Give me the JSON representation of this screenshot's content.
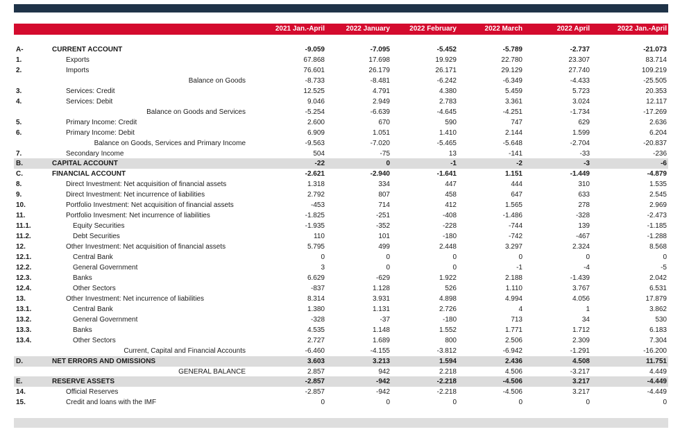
{
  "columns": [
    "2021 Jan.-April",
    "2022 January",
    "2022 February",
    "2022 March",
    "2022 April",
    "2022 Jan.-April"
  ],
  "rows": [
    {
      "code": "A-",
      "label": "CURRENT ACCOUNT",
      "values": [
        "-9.059",
        "-7.095",
        "-5.452",
        "-5.789",
        "-2.737",
        "-21.073"
      ],
      "style": "bold"
    },
    {
      "code": "1.",
      "label": "Exports",
      "values": [
        "67.868",
        "17.698",
        "19.929",
        "22.780",
        "23.307",
        "83.714"
      ],
      "style": "lv1"
    },
    {
      "code": "2.",
      "label": "Imports",
      "values": [
        "76.601",
        "26.179",
        "26.171",
        "29.129",
        "27.740",
        "109.219"
      ],
      "style": "lv1"
    },
    {
      "code": "",
      "label": "Balance on Goods",
      "values": [
        "-8.733",
        "-8.481",
        "-6.242",
        "-6.349",
        "-4.433",
        "-25.505"
      ],
      "style": "rt"
    },
    {
      "code": "3.",
      "label": "Services: Credit",
      "values": [
        "12.525",
        "4.791",
        "4.380",
        "5.459",
        "5.723",
        "20.353"
      ],
      "style": "lv1"
    },
    {
      "code": "4.",
      "label": "Services: Debit",
      "values": [
        "9.046",
        "2.949",
        "2.783",
        "3.361",
        "3.024",
        "12.117"
      ],
      "style": "lv1"
    },
    {
      "code": "",
      "label": "Balance on Goods and Services",
      "values": [
        "-5.254",
        "-6.639",
        "-4.645",
        "-4.251",
        "-1.734",
        "-17.269"
      ],
      "style": "rt"
    },
    {
      "code": "5.",
      "label": "Primary Income: Credit",
      "values": [
        "2.600",
        "670",
        "590",
        "747",
        "629",
        "2.636"
      ],
      "style": "lv1"
    },
    {
      "code": "6.",
      "label": "Primary Income: Debit",
      "values": [
        "6.909",
        "1.051",
        "1.410",
        "2.144",
        "1.599",
        "6.204"
      ],
      "style": "lv1"
    },
    {
      "code": "",
      "label": "Balance on Goods, Services and Primary Income",
      "values": [
        "-9.563",
        "-7.020",
        "-5.465",
        "-5.648",
        "-2.704",
        "-20.837"
      ],
      "style": "rt"
    },
    {
      "code": "7.",
      "label": "Secondary Income",
      "values": [
        "504",
        "-75",
        "13",
        "-141",
        "-33",
        "-236"
      ],
      "style": "lv1"
    },
    {
      "code": "B.",
      "label": "CAPITAL ACCOUNT",
      "values": [
        "-22",
        "0",
        "-1",
        "-2",
        "-3",
        "-6"
      ],
      "style": "bold shade"
    },
    {
      "code": "C.",
      "label": "FINANCIAL ACCOUNT",
      "values": [
        "-2.621",
        "-2.940",
        "-1.641",
        "1.151",
        "-1.449",
        "-4.879"
      ],
      "style": "bold"
    },
    {
      "code": "8.",
      "label": "Direct Investment: Net acquisition of financial assets",
      "values": [
        "1.318",
        "334",
        "447",
        "444",
        "310",
        "1.535"
      ],
      "style": "lv1"
    },
    {
      "code": "9.",
      "label": "Direct Investment: Net incurrence of liabilities",
      "values": [
        "2.792",
        "807",
        "458",
        "647",
        "633",
        "2.545"
      ],
      "style": "lv1"
    },
    {
      "code": "10.",
      "label": "Portfolio Investment: Net acquisition of financial assets",
      "values": [
        "-453",
        "714",
        "412",
        "1.565",
        "278",
        "2.969"
      ],
      "style": "lv1"
    },
    {
      "code": "11.",
      "label": "Portfolio Invesment: Net incurrence of liabilities",
      "values": [
        "-1.825",
        "-251",
        "-408",
        "-1.486",
        "-328",
        "-2.473"
      ],
      "style": "lv1"
    },
    {
      "code": "11.1.",
      "label": "Equity Securities",
      "values": [
        "-1.935",
        "-352",
        "-228",
        "-744",
        "139",
        "-1.185"
      ],
      "style": "lv2"
    },
    {
      "code": "11.2.",
      "label": "Debt Securities",
      "values": [
        "110",
        "101",
        "-180",
        "-742",
        "-467",
        "-1.288"
      ],
      "style": "lv2"
    },
    {
      "code": "12.",
      "label": "Other Investment: Net acquisition of financial assets",
      "values": [
        "5.795",
        "499",
        "2.448",
        "3.297",
        "2.324",
        "8.568"
      ],
      "style": "lv1"
    },
    {
      "code": "12.1.",
      "label": "Central Bank",
      "values": [
        "0",
        "0",
        "0",
        "0",
        "0",
        "0"
      ],
      "style": "lv2"
    },
    {
      "code": "12.2.",
      "label": "General Government",
      "values": [
        "3",
        "0",
        "0",
        "-1",
        "-4",
        "-5"
      ],
      "style": "lv2"
    },
    {
      "code": "12.3.",
      "label": "Banks",
      "values": [
        "6.629",
        "-629",
        "1.922",
        "2.188",
        "-1.439",
        "2.042"
      ],
      "style": "lv2"
    },
    {
      "code": "12.4.",
      "label": "Other Sectors",
      "values": [
        "-837",
        "1.128",
        "526",
        "1.110",
        "3.767",
        "6.531"
      ],
      "style": "lv2"
    },
    {
      "code": "13.",
      "label": "Other Investment: Net incurrence of liabilities",
      "values": [
        "8.314",
        "3.931",
        "4.898",
        "4.994",
        "4.056",
        "17.879"
      ],
      "style": "lv1"
    },
    {
      "code": "13.1.",
      "label": "Central Bank",
      "values": [
        "1.380",
        "1.131",
        "2.726",
        "4",
        "1",
        "3.862"
      ],
      "style": "lv2"
    },
    {
      "code": "13.2.",
      "label": "General Government",
      "values": [
        "-328",
        "-37",
        "-180",
        "713",
        "34",
        "530"
      ],
      "style": "lv2"
    },
    {
      "code": "13.3.",
      "label": "Banks",
      "values": [
        "4.535",
        "1.148",
        "1.552",
        "1.771",
        "1.712",
        "6.183"
      ],
      "style": "lv2"
    },
    {
      "code": "13.4.",
      "label": "Other Sectors",
      "values": [
        "2.727",
        "1.689",
        "800",
        "2.506",
        "2.309",
        "7.304"
      ],
      "style": "lv2"
    },
    {
      "code": "",
      "label": "Current, Capital and Financial Accounts",
      "values": [
        "-6.460",
        "-4.155",
        "-3.812",
        "-6.942",
        "-1.291",
        "-16.200"
      ],
      "style": "rt"
    },
    {
      "code": "D.",
      "label": "NET ERRORS AND OMISSIONS",
      "values": [
        "3.603",
        "3.213",
        "1.594",
        "2.436",
        "4.508",
        "11.751"
      ],
      "style": "bold shade"
    },
    {
      "code": "",
      "label": "GENERAL BALANCE",
      "values": [
        "2.857",
        "942",
        "2.218",
        "4.506",
        "-3.217",
        "4.449"
      ],
      "style": "rt"
    },
    {
      "code": "E.",
      "label": "RESERVE ASSETS",
      "values": [
        "-2.857",
        "-942",
        "-2.218",
        "-4.506",
        "3.217",
        "-4.449"
      ],
      "style": "bold shade"
    },
    {
      "code": "14.",
      "label": "Official Reserves",
      "values": [
        "-2.857",
        "-942",
        "-2.218",
        "-4.506",
        "3.217",
        "-4.449"
      ],
      "style": "lv1"
    },
    {
      "code": "15.",
      "label": "Credit and loans with the IMF",
      "values": [
        "0",
        "0",
        "0",
        "0",
        "0",
        "0"
      ],
      "style": "lv1"
    }
  ]
}
